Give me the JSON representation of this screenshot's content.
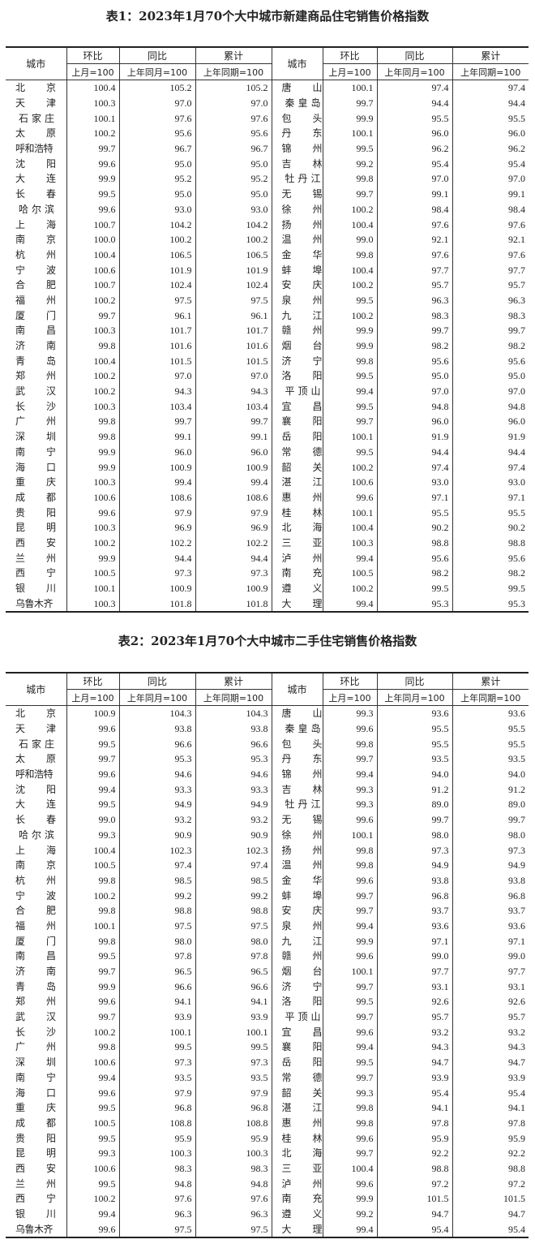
{
  "tables": [
    {
      "title": "表1：2023年1月70个大中城市新建商品住宅销售价格指数",
      "headers": {
        "city": "城市",
        "hb": "环比",
        "tb": "同比",
        "lj": "累计",
        "hb_sub": "上月=100",
        "tb_sub": "上年同月=100",
        "lj_sub": "上年同期=100"
      },
      "left": [
        [
          "北京",
          "100.4",
          "105.2",
          "105.2"
        ],
        [
          "天津",
          "100.3",
          "97.0",
          "97.0"
        ],
        [
          "石家庄",
          "100.1",
          "97.6",
          "97.6"
        ],
        [
          "太原",
          "100.2",
          "95.6",
          "95.6"
        ],
        [
          "呼和浩特",
          "99.7",
          "96.7",
          "96.7"
        ],
        [
          "沈阳",
          "99.6",
          "95.0",
          "95.0"
        ],
        [
          "大连",
          "99.9",
          "95.2",
          "95.2"
        ],
        [
          "长春",
          "99.5",
          "95.0",
          "95.0"
        ],
        [
          "哈尔滨",
          "99.6",
          "93.0",
          "93.0"
        ],
        [
          "上海",
          "100.7",
          "104.2",
          "104.2"
        ],
        [
          "南京",
          "100.0",
          "100.2",
          "100.2"
        ],
        [
          "杭州",
          "100.4",
          "106.5",
          "106.5"
        ],
        [
          "宁波",
          "100.6",
          "101.9",
          "101.9"
        ],
        [
          "合肥",
          "100.7",
          "102.4",
          "102.4"
        ],
        [
          "福州",
          "100.2",
          "97.5",
          "97.5"
        ],
        [
          "厦门",
          "99.7",
          "96.1",
          "96.1"
        ],
        [
          "南昌",
          "100.3",
          "101.7",
          "101.7"
        ],
        [
          "济南",
          "99.8",
          "101.6",
          "101.6"
        ],
        [
          "青岛",
          "100.4",
          "101.5",
          "101.5"
        ],
        [
          "郑州",
          "100.2",
          "97.0",
          "97.0"
        ],
        [
          "武汉",
          "100.2",
          "94.3",
          "94.3"
        ],
        [
          "长沙",
          "100.3",
          "103.4",
          "103.4"
        ],
        [
          "广州",
          "99.8",
          "99.7",
          "99.7"
        ],
        [
          "深圳",
          "99.8",
          "99.1",
          "99.1"
        ],
        [
          "南宁",
          "99.9",
          "96.0",
          "96.0"
        ],
        [
          "海口",
          "99.9",
          "100.9",
          "100.9"
        ],
        [
          "重庆",
          "100.3",
          "99.4",
          "99.4"
        ],
        [
          "成都",
          "100.6",
          "108.6",
          "108.6"
        ],
        [
          "贵阳",
          "99.6",
          "97.9",
          "97.9"
        ],
        [
          "昆明",
          "100.3",
          "96.9",
          "96.9"
        ],
        [
          "西安",
          "100.2",
          "102.2",
          "102.2"
        ],
        [
          "兰州",
          "99.9",
          "94.4",
          "94.4"
        ],
        [
          "西宁",
          "100.5",
          "97.3",
          "97.3"
        ],
        [
          "银川",
          "100.1",
          "100.9",
          "100.9"
        ],
        [
          "乌鲁木齐",
          "100.3",
          "101.8",
          "101.8"
        ]
      ],
      "right": [
        [
          "唐山",
          "100.1",
          "97.4",
          "97.4"
        ],
        [
          "秦皇岛",
          "99.7",
          "94.4",
          "94.4"
        ],
        [
          "包头",
          "99.9",
          "95.5",
          "95.5"
        ],
        [
          "丹东",
          "100.1",
          "96.0",
          "96.0"
        ],
        [
          "锦州",
          "99.5",
          "96.2",
          "96.2"
        ],
        [
          "吉林",
          "99.2",
          "95.4",
          "95.4"
        ],
        [
          "牡丹江",
          "99.8",
          "97.0",
          "97.0"
        ],
        [
          "无锡",
          "99.7",
          "99.1",
          "99.1"
        ],
        [
          "徐州",
          "100.2",
          "98.4",
          "98.4"
        ],
        [
          "扬州",
          "100.4",
          "97.6",
          "97.6"
        ],
        [
          "温州",
          "99.0",
          "92.1",
          "92.1"
        ],
        [
          "金华",
          "99.8",
          "97.6",
          "97.6"
        ],
        [
          "蚌埠",
          "100.4",
          "97.7",
          "97.7"
        ],
        [
          "安庆",
          "100.2",
          "95.7",
          "95.7"
        ],
        [
          "泉州",
          "99.5",
          "96.3",
          "96.3"
        ],
        [
          "九江",
          "100.2",
          "98.3",
          "98.3"
        ],
        [
          "赣州",
          "99.9",
          "99.7",
          "99.7"
        ],
        [
          "烟台",
          "99.9",
          "98.2",
          "98.2"
        ],
        [
          "济宁",
          "99.8",
          "95.6",
          "95.6"
        ],
        [
          "洛阳",
          "99.5",
          "95.0",
          "95.0"
        ],
        [
          "平顶山",
          "99.4",
          "97.0",
          "97.0"
        ],
        [
          "宜昌",
          "99.5",
          "94.8",
          "94.8"
        ],
        [
          "襄阳",
          "99.7",
          "96.0",
          "96.0"
        ],
        [
          "岳阳",
          "100.1",
          "91.9",
          "91.9"
        ],
        [
          "常德",
          "99.5",
          "94.4",
          "94.4"
        ],
        [
          "韶关",
          "100.2",
          "97.4",
          "97.4"
        ],
        [
          "湛江",
          "100.6",
          "93.0",
          "93.0"
        ],
        [
          "惠州",
          "99.6",
          "97.1",
          "97.1"
        ],
        [
          "桂林",
          "100.1",
          "95.5",
          "95.5"
        ],
        [
          "北海",
          "100.4",
          "90.2",
          "90.2"
        ],
        [
          "三亚",
          "100.3",
          "98.8",
          "98.8"
        ],
        [
          "泸州",
          "99.4",
          "95.6",
          "95.6"
        ],
        [
          "南充",
          "100.5",
          "98.2",
          "98.2"
        ],
        [
          "遵义",
          "100.2",
          "99.5",
          "99.5"
        ],
        [
          "大理",
          "99.4",
          "95.3",
          "95.3"
        ]
      ]
    },
    {
      "title": "表2：2023年1月70个大中城市二手住宅销售价格指数",
      "headers": {
        "city": "城市",
        "hb": "环比",
        "tb": "同比",
        "lj": "累计",
        "hb_sub": "上月=100",
        "tb_sub": "上年同月=100",
        "lj_sub": "上年同期=100"
      },
      "left": [
        [
          "北京",
          "100.9",
          "104.3",
          "104.3"
        ],
        [
          "天津",
          "99.6",
          "93.8",
          "93.8"
        ],
        [
          "石家庄",
          "99.5",
          "96.6",
          "96.6"
        ],
        [
          "太原",
          "99.7",
          "95.3",
          "95.3"
        ],
        [
          "呼和浩特",
          "99.6",
          "94.6",
          "94.6"
        ],
        [
          "沈阳",
          "99.4",
          "93.3",
          "93.3"
        ],
        [
          "大连",
          "99.5",
          "94.9",
          "94.9"
        ],
        [
          "长春",
          "99.0",
          "93.2",
          "93.2"
        ],
        [
          "哈尔滨",
          "99.3",
          "90.9",
          "90.9"
        ],
        [
          "上海",
          "100.4",
          "102.3",
          "102.3"
        ],
        [
          "南京",
          "100.5",
          "97.4",
          "97.4"
        ],
        [
          "杭州",
          "99.8",
          "98.5",
          "98.5"
        ],
        [
          "宁波",
          "100.2",
          "99.2",
          "99.2"
        ],
        [
          "合肥",
          "99.8",
          "98.8",
          "98.8"
        ],
        [
          "福州",
          "100.1",
          "97.5",
          "97.5"
        ],
        [
          "厦门",
          "99.8",
          "98.0",
          "98.0"
        ],
        [
          "南昌",
          "99.5",
          "97.8",
          "97.8"
        ],
        [
          "济南",
          "99.7",
          "96.5",
          "96.5"
        ],
        [
          "青岛",
          "99.9",
          "96.6",
          "96.6"
        ],
        [
          "郑州",
          "99.6",
          "94.1",
          "94.1"
        ],
        [
          "武汉",
          "99.7",
          "93.9",
          "93.9"
        ],
        [
          "长沙",
          "100.2",
          "100.1",
          "100.1"
        ],
        [
          "广州",
          "99.8",
          "99.5",
          "99.5"
        ],
        [
          "深圳",
          "100.6",
          "97.3",
          "97.3"
        ],
        [
          "南宁",
          "99.4",
          "93.5",
          "93.5"
        ],
        [
          "海口",
          "99.6",
          "97.9",
          "97.9"
        ],
        [
          "重庆",
          "99.5",
          "96.8",
          "96.8"
        ],
        [
          "成都",
          "100.5",
          "108.8",
          "108.8"
        ],
        [
          "贵阳",
          "99.5",
          "95.9",
          "95.9"
        ],
        [
          "昆明",
          "99.3",
          "100.3",
          "100.3"
        ],
        [
          "西安",
          "100.6",
          "98.3",
          "98.3"
        ],
        [
          "兰州",
          "99.5",
          "94.8",
          "94.8"
        ],
        [
          "西宁",
          "100.2",
          "97.6",
          "97.6"
        ],
        [
          "银川",
          "99.4",
          "96.3",
          "96.3"
        ],
        [
          "乌鲁木齐",
          "99.6",
          "97.5",
          "97.5"
        ]
      ],
      "right": [
        [
          "唐山",
          "99.3",
          "93.6",
          "93.6"
        ],
        [
          "秦皇岛",
          "99.6",
          "95.5",
          "95.5"
        ],
        [
          "包头",
          "99.8",
          "95.5",
          "95.5"
        ],
        [
          "丹东",
          "99.7",
          "93.5",
          "93.5"
        ],
        [
          "锦州",
          "99.4",
          "94.0",
          "94.0"
        ],
        [
          "吉林",
          "99.3",
          "91.2",
          "91.2"
        ],
        [
          "牡丹江",
          "99.3",
          "89.0",
          "89.0"
        ],
        [
          "无锡",
          "99.6",
          "99.7",
          "99.7"
        ],
        [
          "徐州",
          "100.1",
          "98.0",
          "98.0"
        ],
        [
          "扬州",
          "99.8",
          "97.3",
          "97.3"
        ],
        [
          "温州",
          "99.8",
          "94.9",
          "94.9"
        ],
        [
          "金华",
          "99.6",
          "93.8",
          "93.8"
        ],
        [
          "蚌埠",
          "99.7",
          "96.8",
          "96.8"
        ],
        [
          "安庆",
          "99.7",
          "93.7",
          "93.7"
        ],
        [
          "泉州",
          "99.4",
          "93.6",
          "93.6"
        ],
        [
          "九江",
          "99.9",
          "97.1",
          "97.1"
        ],
        [
          "赣州",
          "99.6",
          "99.0",
          "99.0"
        ],
        [
          "烟台",
          "100.1",
          "97.7",
          "97.7"
        ],
        [
          "济宁",
          "99.7",
          "93.1",
          "93.1"
        ],
        [
          "洛阳",
          "99.5",
          "92.6",
          "92.6"
        ],
        [
          "平顶山",
          "99.7",
          "95.7",
          "95.7"
        ],
        [
          "宜昌",
          "99.6",
          "93.2",
          "93.2"
        ],
        [
          "襄阳",
          "99.4",
          "94.3",
          "94.3"
        ],
        [
          "岳阳",
          "99.5",
          "94.7",
          "94.7"
        ],
        [
          "常德",
          "99.7",
          "93.9",
          "93.9"
        ],
        [
          "韶关",
          "99.3",
          "95.4",
          "95.4"
        ],
        [
          "湛江",
          "99.8",
          "94.1",
          "94.1"
        ],
        [
          "惠州",
          "99.8",
          "97.8",
          "97.8"
        ],
        [
          "桂林",
          "99.6",
          "95.9",
          "95.9"
        ],
        [
          "北海",
          "99.7",
          "92.2",
          "92.2"
        ],
        [
          "三亚",
          "100.4",
          "98.8",
          "98.8"
        ],
        [
          "泸州",
          "99.6",
          "97.2",
          "97.2"
        ],
        [
          "南充",
          "99.9",
          "101.5",
          "101.5"
        ],
        [
          "遵义",
          "99.2",
          "94.7",
          "94.7"
        ],
        [
          "大理",
          "99.4",
          "95.4",
          "95.4"
        ]
      ]
    }
  ]
}
